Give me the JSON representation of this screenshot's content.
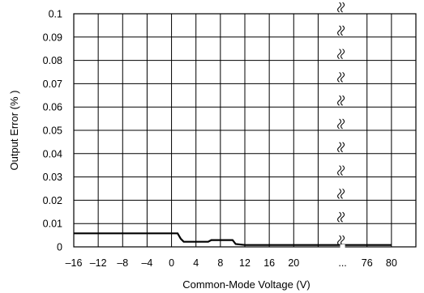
{
  "chart_data": {
    "type": "line",
    "xlabel": "Common-Mode Voltage (V)",
    "ylabel": "Output Error (% )",
    "x_tick_labels": [
      "–16",
      "–12",
      "–8",
      "–4",
      "0",
      "4",
      "8",
      "12",
      "16",
      "20",
      "...",
      "76",
      "80"
    ],
    "y_tick_labels": [
      "0",
      "0.01",
      "0.02",
      "0.03",
      "0.04",
      "0.05",
      "0.06",
      "0.07",
      "0.08",
      "0.09",
      "0.1"
    ],
    "ylim": [
      0,
      0.1
    ],
    "grid": true,
    "axis_break": "between 20 and 76",
    "series": [
      {
        "x": [
          "–16",
          "0",
          "1",
          "1.5",
          "2",
          "4",
          "6",
          "6.5",
          "10",
          "10.5",
          "12",
          "16",
          "20",
          "76",
          "80"
        ],
        "values": [
          0.0058,
          0.0058,
          0.0058,
          0.0035,
          0.0022,
          0.0022,
          0.0022,
          0.0029,
          0.0029,
          0.0012,
          0.0008,
          0.0008,
          0.0008,
          0.0008,
          0.0008
        ]
      }
    ]
  }
}
